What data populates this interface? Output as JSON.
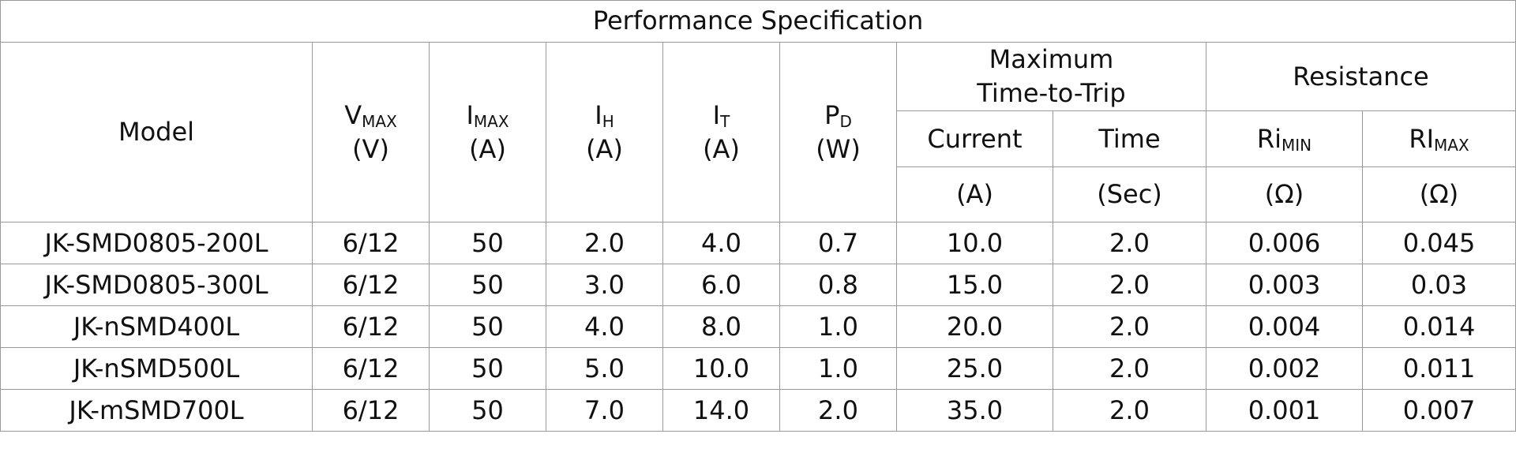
{
  "title": "Performance Specification",
  "header": {
    "model": "Model",
    "columns": [
      {
        "symbol": "V",
        "subscript": "MAX",
        "unit": "(V)"
      },
      {
        "symbol": "I",
        "subscript": "MAX",
        "unit": "(A)"
      },
      {
        "symbol": "I",
        "subscript": "H",
        "unit": "(A)"
      },
      {
        "symbol": "I",
        "subscript": "T",
        "unit": "(A)"
      },
      {
        "symbol": "P",
        "subscript": "D",
        "unit": "(W)"
      }
    ],
    "trip": {
      "lines": [
        "Maximum",
        "Time-to-Trip"
      ],
      "columns": [
        {
          "name": "Current",
          "unit": "(A)"
        },
        {
          "name": "Time",
          "unit": "(Sec)"
        }
      ]
    },
    "resistance": {
      "name": "Resistance",
      "columns": [
        {
          "symbol": "Ri",
          "subscript": "MIN",
          "unit": "(Ω)"
        },
        {
          "symbol": "RI",
          "subscript": "MAX",
          "unit": "(Ω)"
        }
      ]
    }
  },
  "table": {
    "rows": [
      [
        "JK-SMD0805-200L",
        "6/12",
        "50",
        "2.0",
        "4.0",
        "0.7",
        "10.0",
        "2.0",
        "0.006",
        "0.045"
      ],
      [
        "JK-SMD0805-300L",
        "6/12",
        "50",
        "3.0",
        "6.0",
        "0.8",
        "15.0",
        "2.0",
        "0.003",
        "0.03"
      ],
      [
        "JK-nSMD400L",
        "6/12",
        "50",
        "4.0",
        "8.0",
        "1.0",
        "20.0",
        "2.0",
        "0.004",
        "0.014"
      ],
      [
        "JK-nSMD500L",
        "6/12",
        "50",
        "5.0",
        "10.0",
        "1.0",
        "25.0",
        "2.0",
        "0.002",
        "0.011"
      ],
      [
        "JK-mSMD700L",
        "6/12",
        "50",
        "7.0",
        "14.0",
        "2.0",
        "35.0",
        "2.0",
        "0.001",
        "0.007"
      ]
    ]
  }
}
